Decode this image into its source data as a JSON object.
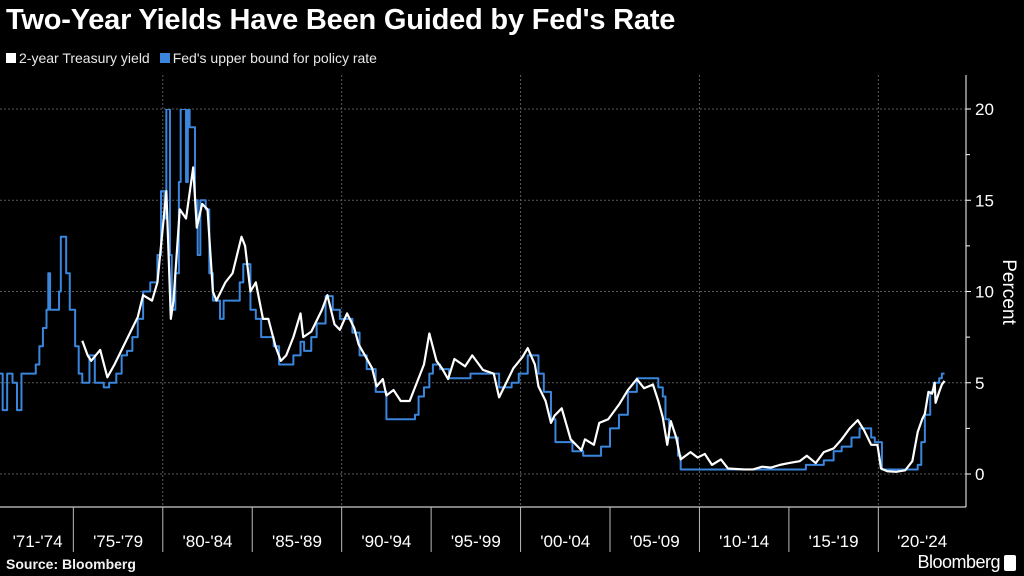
{
  "colors": {
    "background": "#000000",
    "yield": "#ffffff",
    "fed": "#3a86dc",
    "grid": "#5a5a5a"
  },
  "source": "Source: Bloomberg",
  "brand": "Bloomberg",
  "chart_data": {
    "type": "line",
    "title": "Two-Year Yields Have Been Guided by Fed's Rate",
    "ylabel": "Percent",
    "xlabel": "",
    "ylim": [
      -2,
      21
    ],
    "xlim": [
      1970.9,
      2024.9
    ],
    "y_ticks": [
      "0",
      "5",
      "10",
      "15",
      "20"
    ],
    "x_tick_labels": [
      "'71-'74",
      "'75-'79",
      "'80-'84",
      "'85-'89",
      "'90-'94",
      "'95-'99",
      "'00-'04",
      "'05-'09",
      "'10-'14",
      "'15-'19",
      "'20-'24"
    ],
    "grid": true,
    "legend_position": "top-left",
    "series": [
      {
        "name": "2-year Treasury yield",
        "style": "line",
        "points": [
          [
            1975.5,
            7.3
          ],
          [
            1975.8,
            6.5
          ],
          [
            1976.0,
            6.2
          ],
          [
            1976.5,
            6.8
          ],
          [
            1976.9,
            5.3
          ],
          [
            1977.3,
            6.0
          ],
          [
            1977.8,
            7.0
          ],
          [
            1978.2,
            7.8
          ],
          [
            1978.6,
            8.6
          ],
          [
            1978.9,
            9.8
          ],
          [
            1979.4,
            9.5
          ],
          [
            1979.7,
            10.5
          ],
          [
            1979.9,
            12.5
          ],
          [
            1980.2,
            15.5
          ],
          [
            1980.45,
            8.5
          ],
          [
            1980.6,
            9.5
          ],
          [
            1980.95,
            14.5
          ],
          [
            1981.3,
            14.0
          ],
          [
            1981.7,
            16.8
          ],
          [
            1981.9,
            13.5
          ],
          [
            1982.2,
            14.8
          ],
          [
            1982.5,
            14.5
          ],
          [
            1982.8,
            10
          ],
          [
            1983.0,
            9.5
          ],
          [
            1983.5,
            10.5
          ],
          [
            1983.9,
            11
          ],
          [
            1984.4,
            13.0
          ],
          [
            1984.6,
            12.5
          ],
          [
            1984.9,
            10
          ],
          [
            1985.2,
            10.5
          ],
          [
            1985.6,
            8.5
          ],
          [
            1985.9,
            8.5
          ],
          [
            1986.3,
            7
          ],
          [
            1986.6,
            6.2
          ],
          [
            1986.9,
            6.5
          ],
          [
            1987.3,
            7.5
          ],
          [
            1987.7,
            8.8
          ],
          [
            1987.85,
            7.5
          ],
          [
            1988.3,
            7.8
          ],
          [
            1988.9,
            9
          ],
          [
            1989.2,
            9.8
          ],
          [
            1989.6,
            8.2
          ],
          [
            1989.9,
            7.9
          ],
          [
            1990.3,
            8.8
          ],
          [
            1990.7,
            8
          ],
          [
            1990.95,
            7.1
          ],
          [
            1991.3,
            6.5
          ],
          [
            1991.7,
            5.8
          ],
          [
            1991.95,
            4.8
          ],
          [
            1992.3,
            5.2
          ],
          [
            1992.5,
            4.3
          ],
          [
            1992.9,
            4.6
          ],
          [
            1993.3,
            4.0
          ],
          [
            1993.8,
            4.0
          ],
          [
            1994.2,
            5.0
          ],
          [
            1994.6,
            6.0
          ],
          [
            1994.9,
            7.7
          ],
          [
            1995.3,
            6.2
          ],
          [
            1995.6,
            5.8
          ],
          [
            1995.95,
            5.2
          ],
          [
            1996.3,
            6.3
          ],
          [
            1996.9,
            5.9
          ],
          [
            1997.3,
            6.5
          ],
          [
            1997.9,
            5.7
          ],
          [
            1998.5,
            5.5
          ],
          [
            1998.8,
            4.2
          ],
          [
            1999.2,
            5.0
          ],
          [
            1999.6,
            5.8
          ],
          [
            2000.1,
            6.4
          ],
          [
            2000.4,
            6.9
          ],
          [
            2000.8,
            6.0
          ],
          [
            2001.0,
            4.8
          ],
          [
            2001.4,
            4.0
          ],
          [
            2001.7,
            2.8
          ],
          [
            2001.9,
            3.2
          ],
          [
            2002.3,
            3.6
          ],
          [
            2002.8,
            1.9
          ],
          [
            2003.4,
            1.3
          ],
          [
            2003.6,
            1.9
          ],
          [
            2004.1,
            1.6
          ],
          [
            2004.4,
            2.8
          ],
          [
            2004.9,
            3.0
          ],
          [
            2005.5,
            3.8
          ],
          [
            2006.0,
            4.6
          ],
          [
            2006.5,
            5.2
          ],
          [
            2006.9,
            4.7
          ],
          [
            2007.4,
            4.9
          ],
          [
            2007.7,
            4.0
          ],
          [
            2007.95,
            3.1
          ],
          [
            2008.2,
            1.6
          ],
          [
            2008.4,
            2.9
          ],
          [
            2008.7,
            2.0
          ],
          [
            2008.95,
            0.8
          ],
          [
            2009.5,
            1.2
          ],
          [
            2009.9,
            0.9
          ],
          [
            2010.3,
            1.1
          ],
          [
            2010.7,
            0.5
          ],
          [
            2011.2,
            0.8
          ],
          [
            2011.6,
            0.3
          ],
          [
            2012.5,
            0.25
          ],
          [
            2013.0,
            0.25
          ],
          [
            2013.5,
            0.4
          ],
          [
            2014.0,
            0.35
          ],
          [
            2014.5,
            0.5
          ],
          [
            2015.0,
            0.6
          ],
          [
            2015.6,
            0.7
          ],
          [
            2016.0,
            1.0
          ],
          [
            2016.5,
            0.6
          ],
          [
            2016.95,
            1.2
          ],
          [
            2017.5,
            1.4
          ],
          [
            2017.95,
            1.9
          ],
          [
            2018.4,
            2.5
          ],
          [
            2018.85,
            2.95
          ],
          [
            2019.2,
            2.4
          ],
          [
            2019.6,
            1.6
          ],
          [
            2019.95,
            1.6
          ],
          [
            2020.15,
            0.3
          ],
          [
            2020.5,
            0.15
          ],
          [
            2021.0,
            0.12
          ],
          [
            2021.5,
            0.2
          ],
          [
            2021.9,
            0.7
          ],
          [
            2022.2,
            2.3
          ],
          [
            2022.45,
            3.0
          ],
          [
            2022.6,
            3.3
          ],
          [
            2022.8,
            4.5
          ],
          [
            2023.0,
            4.4
          ],
          [
            2023.15,
            5.0
          ],
          [
            2023.2,
            3.9
          ],
          [
            2023.4,
            4.5
          ],
          [
            2023.55,
            4.9
          ],
          [
            2023.7,
            5.1
          ]
        ]
      },
      {
        "name": "Fed's upper bound for policy rate",
        "style": "step",
        "points": [
          [
            1970.9,
            5.5
          ],
          [
            1971.05,
            3.5
          ],
          [
            1971.3,
            5.5
          ],
          [
            1971.6,
            5.0
          ],
          [
            1971.85,
            3.5
          ],
          [
            1972.1,
            5.5
          ],
          [
            1972.9,
            6
          ],
          [
            1973.1,
            7
          ],
          [
            1973.3,
            8
          ],
          [
            1973.5,
            9
          ],
          [
            1973.6,
            11
          ],
          [
            1973.7,
            9
          ],
          [
            1974.2,
            10
          ],
          [
            1974.3,
            13
          ],
          [
            1974.6,
            11
          ],
          [
            1974.8,
            9
          ],
          [
            1975.1,
            7
          ],
          [
            1975.3,
            5.5
          ],
          [
            1975.5,
            5
          ],
          [
            1975.9,
            6.5
          ],
          [
            1976.2,
            5
          ],
          [
            1976.7,
            4.75
          ],
          [
            1977.0,
            5.0
          ],
          [
            1977.4,
            5.5
          ],
          [
            1977.7,
            6.5
          ],
          [
            1978.0,
            6.75
          ],
          [
            1978.3,
            7.5
          ],
          [
            1978.6,
            8.5
          ],
          [
            1978.9,
            10
          ],
          [
            1979.3,
            10.5
          ],
          [
            1979.7,
            12
          ],
          [
            1979.9,
            15.5
          ],
          [
            1980.1,
            14
          ],
          [
            1980.2,
            20
          ],
          [
            1980.4,
            12
          ],
          [
            1980.5,
            9
          ],
          [
            1980.7,
            11
          ],
          [
            1980.9,
            16
          ],
          [
            1981.0,
            20
          ],
          [
            1981.3,
            16
          ],
          [
            1981.4,
            20
          ],
          [
            1981.5,
            19
          ],
          [
            1981.8,
            15
          ],
          [
            1981.95,
            12
          ],
          [
            1982.1,
            15
          ],
          [
            1982.4,
            14.5
          ],
          [
            1982.6,
            11
          ],
          [
            1982.8,
            9.5
          ],
          [
            1983.2,
            8.5
          ],
          [
            1983.4,
            9.5
          ],
          [
            1984.3,
            10.5
          ],
          [
            1984.5,
            11.5
          ],
          [
            1984.9,
            9
          ],
          [
            1985.2,
            8.5
          ],
          [
            1985.5,
            7.5
          ],
          [
            1986.2,
            7
          ],
          [
            1986.5,
            6
          ],
          [
            1987.3,
            6.5
          ],
          [
            1987.7,
            7.25
          ],
          [
            1987.9,
            6.75
          ],
          [
            1988.3,
            7.5
          ],
          [
            1988.6,
            8.25
          ],
          [
            1989.1,
            9.75
          ],
          [
            1989.5,
            9
          ],
          [
            1989.9,
            8.5
          ],
          [
            1990.6,
            7.75
          ],
          [
            1991.0,
            6.5
          ],
          [
            1991.4,
            5.75
          ],
          [
            1991.9,
            4.5
          ],
          [
            1992.5,
            3
          ],
          [
            1994.1,
            3.25
          ],
          [
            1994.3,
            4.25
          ],
          [
            1994.6,
            4.75
          ],
          [
            1994.9,
            5.5
          ],
          [
            1995.1,
            6
          ],
          [
            1995.5,
            5.75
          ],
          [
            1996.0,
            5.25
          ],
          [
            1997.2,
            5.5
          ],
          [
            1998.8,
            4.75
          ],
          [
            1999.5,
            5.0
          ],
          [
            1999.9,
            5.5
          ],
          [
            2000.4,
            6.5
          ],
          [
            2001.0,
            5.5
          ],
          [
            2001.3,
            4.5
          ],
          [
            2001.7,
            3
          ],
          [
            2001.95,
            1.75
          ],
          [
            2002.9,
            1.25
          ],
          [
            2003.5,
            1.0
          ],
          [
            2004.5,
            1.5
          ],
          [
            2005.0,
            2.5
          ],
          [
            2005.5,
            3.25
          ],
          [
            2006.0,
            4.5
          ],
          [
            2006.5,
            5.25
          ],
          [
            2007.7,
            4.75
          ],
          [
            2007.95,
            4.25
          ],
          [
            2008.1,
            3
          ],
          [
            2008.3,
            2
          ],
          [
            2008.8,
            1
          ],
          [
            2008.95,
            0.25
          ],
          [
            2015.95,
            0.5
          ],
          [
            2016.95,
            0.75
          ],
          [
            2017.5,
            1.25
          ],
          [
            2017.95,
            1.5
          ],
          [
            2018.5,
            2.0
          ],
          [
            2018.95,
            2.5
          ],
          [
            2019.6,
            2.0
          ],
          [
            2019.8,
            1.75
          ],
          [
            2020.2,
            0.25
          ],
          [
            2022.2,
            0.5
          ],
          [
            2022.4,
            1.75
          ],
          [
            2022.6,
            3.25
          ],
          [
            2022.9,
            4.5
          ],
          [
            2023.1,
            5.0
          ],
          [
            2023.4,
            5.25
          ],
          [
            2023.55,
            5.5
          ],
          [
            2023.7,
            5.5
          ]
        ]
      }
    ]
  }
}
